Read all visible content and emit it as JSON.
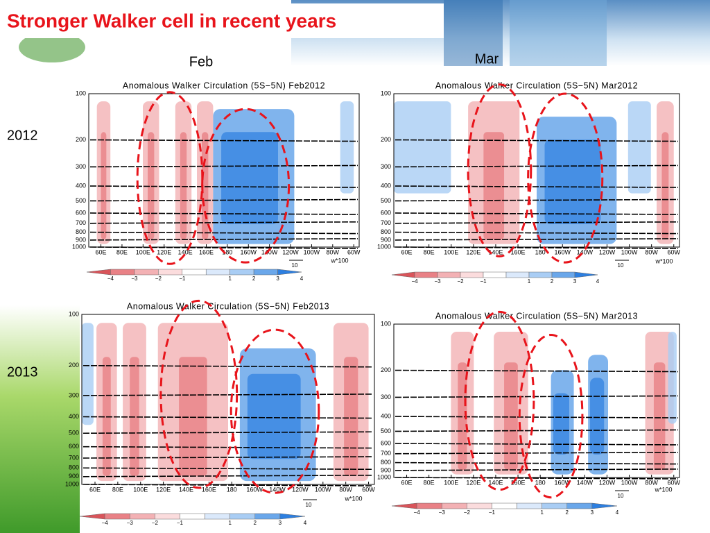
{
  "title": "Stronger Walker cell in recent years",
  "columns": [
    "Feb",
    "Mar"
  ],
  "rows": [
    "2012",
    "2013"
  ],
  "panels": [
    {
      "title": "Anomalous Walker Circulation (5S−5N) Feb2012",
      "levels": [
        "100",
        "200",
        "300",
        "400",
        "500",
        "600",
        "700",
        "800",
        "900",
        "1000"
      ],
      "longitudes": [
        "60E",
        "80E",
        "100E",
        "120E",
        "140E",
        "160E",
        "180",
        "160W",
        "140W",
        "120W",
        "100W",
        "80W",
        "60W"
      ],
      "colorbar": [
        "−4",
        "−3",
        "−2",
        "−1",
        "1",
        "2",
        "3",
        "4"
      ],
      "vector_ref": "10",
      "vector_scale": "w*100"
    },
    {
      "title": "Anomalous Walker Circulation (5S−5N) Mar2012",
      "levels": [
        "100",
        "200",
        "300",
        "400",
        "500",
        "600",
        "700",
        "800",
        "900",
        "1000"
      ],
      "longitudes": [
        "60E",
        "80E",
        "100E",
        "120E",
        "140E",
        "160E",
        "180",
        "160W",
        "140W",
        "120W",
        "100W",
        "80W",
        "60W"
      ],
      "colorbar": [
        "−4",
        "−3",
        "−2",
        "−1",
        "1",
        "2",
        "3",
        "4"
      ],
      "vector_ref": "10",
      "vector_scale": "w*100"
    },
    {
      "title": "Anomalous Walker Circulation (5S−5N) Feb2013",
      "levels": [
        "100",
        "200",
        "300",
        "400",
        "500",
        "600",
        "700",
        "800",
        "900",
        "1000"
      ],
      "longitudes": [
        "60E",
        "80E",
        "100E",
        "120E",
        "140E",
        "160E",
        "180",
        "160W",
        "140W",
        "120W",
        "100W",
        "80W",
        "60W"
      ],
      "colorbar": [
        "−4",
        "−3",
        "−2",
        "−1",
        "1",
        "2",
        "3",
        "4"
      ],
      "vector_ref": "10",
      "vector_scale": "w*100"
    },
    {
      "title": "Anomalous Walker Circulation (5S−5N) Mar2013",
      "levels": [
        "100",
        "200",
        "300",
        "400",
        "500",
        "600",
        "700",
        "800",
        "900",
        "1000"
      ],
      "longitudes": [
        "60E",
        "80E",
        "100E",
        "120E",
        "140E",
        "160E",
        "180",
        "160W",
        "140W",
        "120W",
        "100W",
        "80W",
        "60W"
      ],
      "colorbar": [
        "−4",
        "−3",
        "−2",
        "−1",
        "1",
        "2",
        "3",
        "4"
      ],
      "vector_ref": "10",
      "vector_scale": "w*100"
    }
  ]
}
